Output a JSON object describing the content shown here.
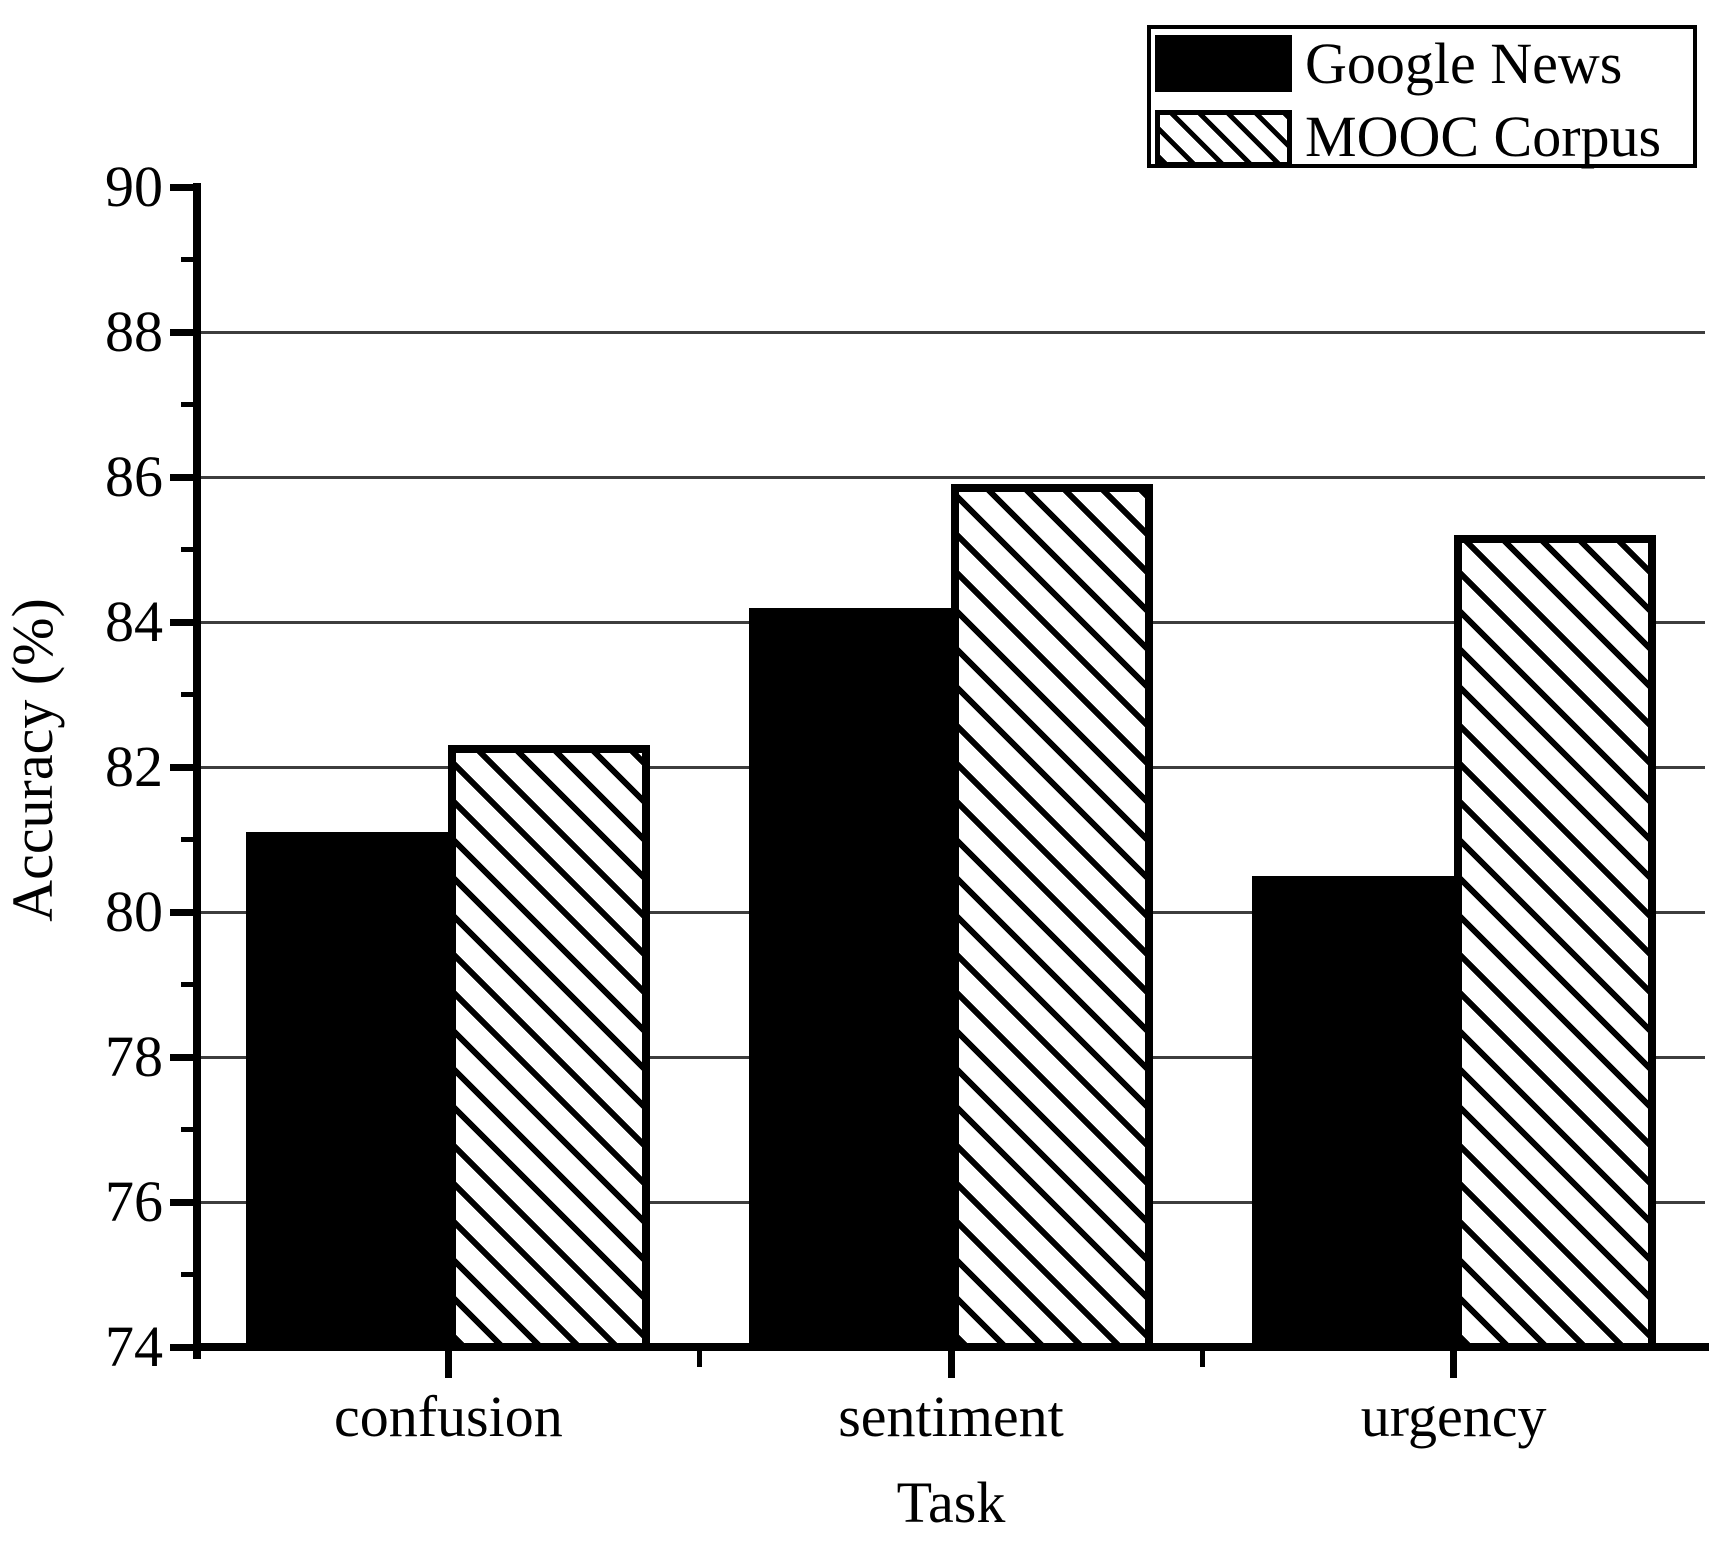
{
  "chart_data": {
    "type": "bar",
    "title": "",
    "categories": [
      "confusion",
      "sentiment",
      "urgency"
    ],
    "series": [
      {
        "name": "Google News",
        "style": "solid-black",
        "values": [
          81.1,
          84.2,
          80.5
        ]
      },
      {
        "name": "MOOC Corpus",
        "style": "diagonal-hatch-backslash",
        "values": [
          82.3,
          85.9,
          85.2
        ]
      }
    ],
    "xlabel": "Task",
    "ylabel": "Accuracy (%)",
    "ylim": [
      74,
      90
    ],
    "y_major_step": 2,
    "y_minor_step": 1,
    "y_tick_labels": [
      "74",
      "76",
      "78",
      "80",
      "82",
      "84",
      "86",
      "88",
      "90"
    ],
    "grid": "horizontal-at-major-ticks",
    "legend_position": "top-right",
    "colors": {
      "bar_fill": "#000000",
      "hatch_foreground": "#000000",
      "hatch_background": "#ffffff",
      "gridline": "#3d3d3d",
      "background": "#ffffff",
      "text": "#000000"
    }
  }
}
